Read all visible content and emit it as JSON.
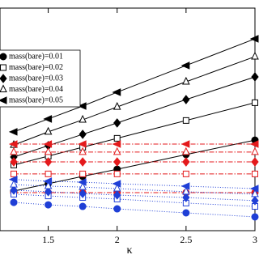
{
  "chart_data": {
    "type": "line",
    "x_label": "κ",
    "x": [
      1.25,
      1.5,
      1.75,
      2.0,
      2.5,
      3.0
    ],
    "xlim": [
      1.15,
      3.0
    ],
    "xticks": [
      1.5,
      2,
      2.5,
      3
    ],
    "ylim": [
      0,
      1
    ],
    "series": [
      {
        "name": "mass(bare)=0.01",
        "marker": "circle",
        "filled": true,
        "lines": [
          {
            "color": "#000000",
            "dash": "solid",
            "values": [
              0.178,
              0.211,
              0.244,
              0.276,
              0.342,
              0.407
            ]
          },
          {
            "color": "#e41a1c",
            "dash": "dashdot",
            "values": [
              0.171,
              0.171,
              0.171,
              0.171,
              0.171,
              0.171
            ]
          },
          {
            "color": "#1f3fd6",
            "dash": "dotted",
            "values": [
              0.127,
              0.116,
              0.109,
              0.098,
              0.08,
              0.062
            ]
          }
        ]
      },
      {
        "name": "mass(bare)=0.02",
        "marker": "square",
        "filled": false,
        "lines": [
          {
            "color": "#000000",
            "dash": "solid",
            "values": [
              0.295,
              0.335,
              0.375,
              0.415,
              0.495,
              0.575
            ]
          },
          {
            "color": "#e41a1c",
            "dash": "dashdot",
            "values": [
              0.255,
              0.255,
              0.255,
              0.255,
              0.255,
              0.255
            ]
          },
          {
            "color": "#1f3fd6",
            "dash": "dotted",
            "values": [
              0.164,
              0.156,
              0.149,
              0.142,
              0.124,
              0.109
            ]
          }
        ]
      },
      {
        "name": "mass(bare)=0.03",
        "marker": "diamond",
        "filled": true,
        "lines": [
          {
            "color": "#000000",
            "dash": "solid",
            "values": [
              0.331,
              0.382,
              0.433,
              0.484,
              0.589,
              0.691
            ]
          },
          {
            "color": "#e41a1c",
            "dash": "dashdot",
            "values": [
              0.309,
              0.309,
              0.309,
              0.309,
              0.309,
              0.309
            ]
          },
          {
            "color": "#1f3fd6",
            "dash": "dotted",
            "values": [
              0.182,
              0.175,
              0.167,
              0.16,
              0.149,
              0.135
            ]
          }
        ]
      },
      {
        "name": "mass(bare)=0.04",
        "marker": "triangle-up",
        "filled": false,
        "lines": [
          {
            "color": "#000000",
            "dash": "solid",
            "values": [
              0.385,
              0.444,
              0.498,
              0.556,
              0.669,
              0.782
            ]
          },
          {
            "color": "#e41a1c",
            "dash": "dashdot",
            "values": [
              0.353,
              0.353,
              0.353,
              0.353,
              0.353,
              0.353
            ]
          },
          {
            "color": "#1f3fd6",
            "dash": "dotted",
            "values": [
              0.207,
              0.2,
              0.196,
              0.189,
              0.175,
              0.164
            ]
          }
        ]
      },
      {
        "name": "mass(bare)=0.05",
        "marker": "triangle-left",
        "filled": true,
        "lines": [
          {
            "color": "#000000",
            "dash": "solid",
            "values": [
              0.444,
              0.502,
              0.56,
              0.622,
              0.742,
              0.862
            ]
          },
          {
            "color": "#e41a1c",
            "dash": "dashdot",
            "values": [
              0.389,
              0.389,
              0.389,
              0.389,
              0.389,
              0.389
            ]
          },
          {
            "color": "#1f3fd6",
            "dash": "dotted",
            "values": [
              0.23,
              0.222,
              0.218,
              0.211,
              0.2,
              0.189
            ]
          }
        ]
      }
    ]
  }
}
